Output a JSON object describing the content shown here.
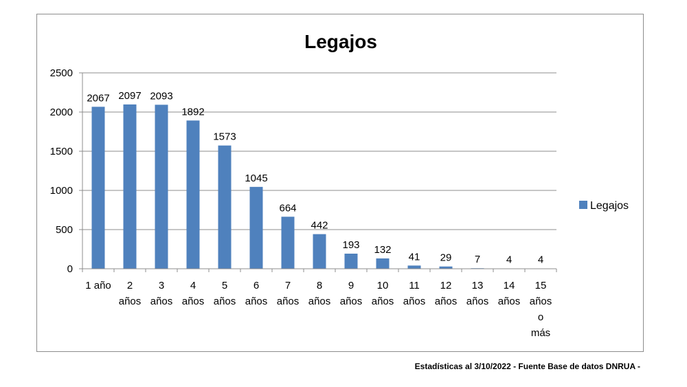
{
  "chart_data": {
    "type": "bar",
    "title": "Legajos",
    "categories": [
      [
        "1 año"
      ],
      [
        "2",
        "años"
      ],
      [
        "3",
        "años"
      ],
      [
        "4",
        "años"
      ],
      [
        "5",
        "años"
      ],
      [
        "6",
        "años"
      ],
      [
        "7",
        "años"
      ],
      [
        "8",
        "años"
      ],
      [
        "9",
        "años"
      ],
      [
        "10",
        "años"
      ],
      [
        "11",
        "años"
      ],
      [
        "12",
        "años"
      ],
      [
        "13",
        "años"
      ],
      [
        "14",
        "años"
      ],
      [
        "15",
        "años",
        "o",
        "más"
      ]
    ],
    "series": [
      {
        "name": "Legajos",
        "values": [
          2067,
          2097,
          2093,
          1892,
          1573,
          1045,
          664,
          442,
          193,
          132,
          41,
          29,
          7,
          4,
          4
        ]
      }
    ],
    "ylim": [
      0,
      2500
    ],
    "yticks": [
      0,
      500,
      1000,
      1500,
      2000,
      2500
    ],
    "grid": true,
    "legend_position": "right",
    "bar_color": "#4f81bd"
  },
  "footnote": "Estadísticas al 3/10/2022  - Fuente Base de datos DNRUA -"
}
